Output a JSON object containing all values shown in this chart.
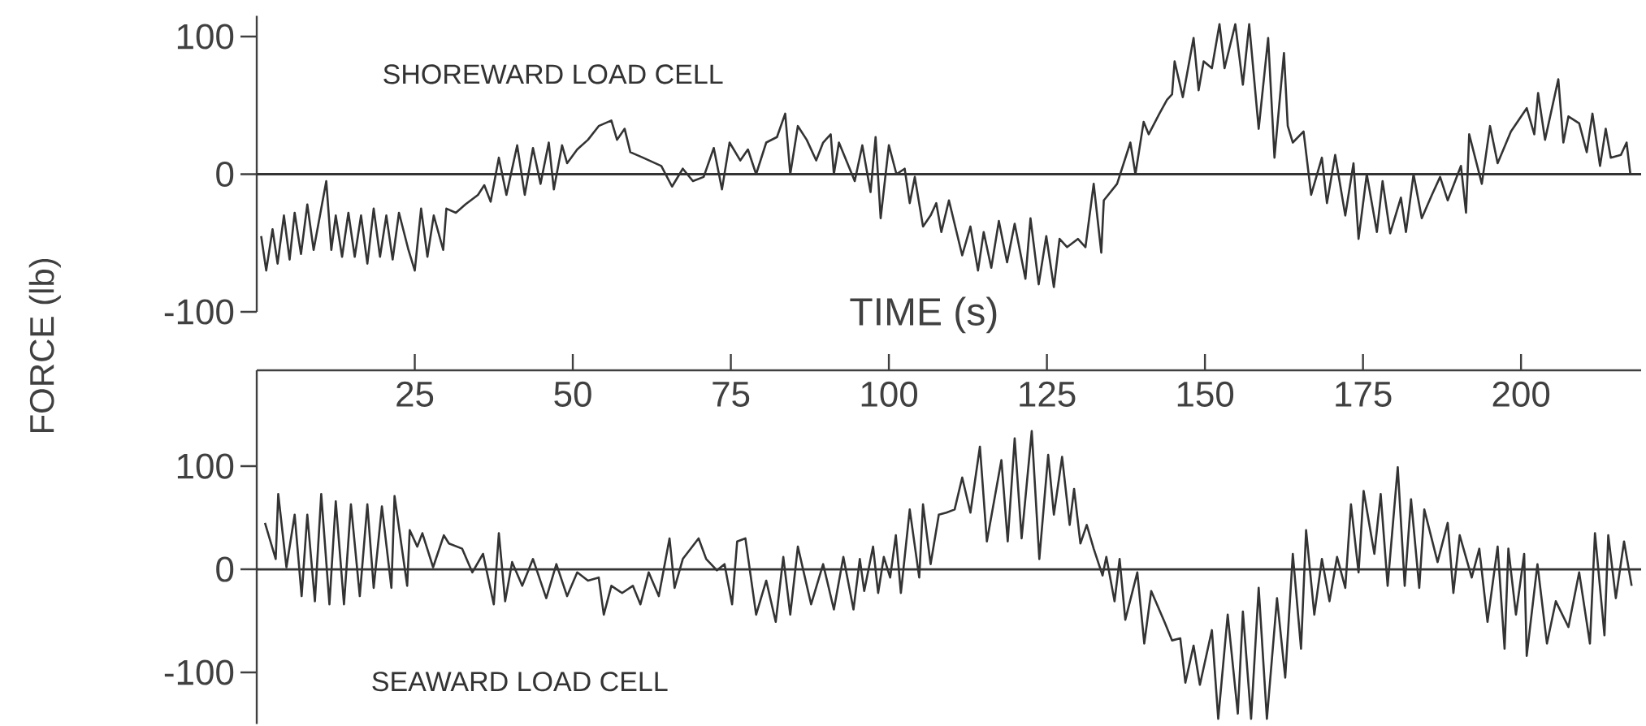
{
  "chart_data": [
    {
      "type": "line",
      "ylabel": "FORCE (lb)",
      "xlim": [
        0,
        219
      ],
      "ylim": [
        -100,
        115
      ],
      "yticks": [
        -100,
        0,
        100
      ],
      "tick_labels": "y",
      "marker": "none",
      "line_style": "solid",
      "ref_lines": [
        {
          "axis": "y",
          "value": 0,
          "color": "#333333"
        }
      ],
      "series": [
        {
          "name": "SHOREWARD LOAD CELL",
          "color": "#333333",
          "x": [
            0.7,
            1.5,
            2.5,
            3.3,
            4.3,
            5.2,
            6,
            7,
            8,
            9,
            11,
            11.8,
            12.5,
            13.5,
            14.5,
            15.5,
            16.5,
            17.5,
            18.5,
            19.5,
            20.5,
            21.5,
            22.5,
            24,
            25,
            26,
            27,
            28,
            29.5,
            30,
            31.5,
            33,
            35,
            36,
            37,
            38.3,
            39.5,
            41.2,
            42.4,
            43.7,
            44.9,
            46.2,
            47,
            48.3,
            49.1,
            50.7,
            52.4,
            54.1,
            56.1,
            57,
            58.2,
            59.1,
            61.1,
            64,
            65.7,
            67.4,
            69,
            70.7,
            72.3,
            73.6,
            74.8,
            76.5,
            77.7,
            79,
            80.6,
            82.3,
            83.6,
            84.4,
            85.6,
            87,
            88.5,
            89.6,
            90.8,
            91.3,
            92.1,
            94.6,
            95.8,
            97.1,
            97.9,
            98.7,
            100,
            101.2,
            102.5,
            103.3,
            104.1,
            105.4,
            106.6,
            107.5,
            108.3,
            109.5,
            111.6,
            112.9,
            114.1,
            115,
            116.2,
            117.4,
            118.7,
            119.9,
            121.6,
            122.4,
            123.7,
            124.9,
            126.1,
            127,
            128.2,
            129.9,
            131.1,
            132.4,
            133.6,
            134,
            136.1,
            138.2,
            139,
            140.3,
            141.1,
            142.8,
            144,
            144.8,
            145.2,
            146.5,
            148.2,
            149,
            149.8,
            151.1,
            152.3,
            153.1,
            154.8,
            156,
            157,
            158.5,
            160,
            161,
            162.5,
            163.1,
            163.9,
            165.6,
            166.8,
            168.5,
            169.3,
            170.6,
            172.2,
            173.5,
            174.3,
            175.6,
            177.2,
            178.1,
            179.3,
            181,
            181.8,
            183,
            184.3,
            185.9,
            187.2,
            188.4,
            190.5,
            191.3,
            191.8,
            193.8,
            195.1,
            196.3,
            198.4,
            200.9,
            202.1,
            202.7,
            203.8,
            205.9,
            206.7,
            207.5,
            209.2,
            210.4,
            211.3,
            212.5,
            213.4,
            214.2,
            215.8,
            216.7,
            217.3
          ],
          "values": [
            -45,
            -70,
            -40,
            -65,
            -30,
            -62,
            -28,
            -58,
            -22,
            -55,
            -5,
            -55,
            -30,
            -60,
            -28,
            -60,
            -30,
            -65,
            -25,
            -60,
            -30,
            -62,
            -28,
            -55,
            -70,
            -25,
            -60,
            -30,
            -55,
            -25,
            -28,
            -22,
            -15,
            -8,
            -20,
            12,
            -15,
            21,
            -15,
            19,
            -7,
            23,
            -11,
            21,
            8,
            18,
            25,
            35,
            39,
            25,
            33,
            16,
            12,
            6,
            -9,
            4,
            -5,
            -2,
            19,
            -11,
            23,
            10,
            18,
            0,
            23,
            27,
            44,
            0,
            35,
            25,
            10,
            23,
            29,
            0,
            23,
            -5,
            21,
            -13,
            27,
            -32,
            21,
            0,
            4,
            -21,
            -2,
            -38,
            -30,
            -21,
            -42,
            -19,
            -59,
            -38,
            -70,
            -42,
            -68,
            -34,
            -64,
            -36,
            -76,
            -32,
            -80,
            -45,
            -82,
            -47,
            -53,
            -47,
            -53,
            -7,
            -57,
            -19,
            -7,
            23,
            0,
            38,
            29,
            44,
            54,
            58,
            82,
            56,
            99,
            61,
            82,
            77,
            109,
            77,
            109,
            65,
            109,
            33,
            99,
            12,
            88,
            35,
            23,
            31,
            -15,
            12,
            -21,
            14,
            -30,
            8,
            -47,
            0,
            -42,
            -5,
            -43,
            -17,
            -42,
            0,
            -32,
            -15,
            -2,
            -19,
            6,
            -28,
            29,
            -7,
            35,
            8,
            31,
            48,
            29,
            59,
            25,
            69,
            23,
            42,
            37,
            16,
            44,
            6,
            33,
            12,
            14,
            23,
            0
          ]
        }
      ]
    },
    {
      "type": "line",
      "xlabel": "TIME (s)",
      "xlim": [
        0,
        219
      ],
      "xticks": [
        25,
        50,
        75,
        100,
        125,
        150,
        175,
        200
      ],
      "ylim": [
        -150,
        193
      ],
      "yticks": [
        -100,
        0,
        100
      ],
      "marker": "none",
      "line_style": "solid",
      "ref_lines": [
        {
          "axis": "y",
          "value": 0,
          "color": "#333333"
        }
      ],
      "series": [
        {
          "name": "SEAWARD LOAD CELL",
          "color": "#333333",
          "x": [
            1.3,
            3,
            3.4,
            4.7,
            6,
            7.1,
            8,
            9.2,
            10.2,
            11.5,
            12.5,
            13.8,
            14.9,
            16.3,
            17.5,
            18.5,
            19.8,
            21.3,
            21.8,
            23.8,
            24.2,
            25.4,
            26.2,
            27.9,
            29.6,
            30.4,
            32.5,
            34.1,
            35.8,
            37.5,
            38.3,
            39.3,
            40.4,
            42,
            43.7,
            45.8,
            47.4,
            49.1,
            50.7,
            52.4,
            54.1,
            54.9,
            56.1,
            57.8,
            59.5,
            60.7,
            62,
            63.6,
            65.3,
            66.1,
            67.4,
            69.9,
            71.1,
            72.8,
            74,
            75.2,
            76,
            77.3,
            79,
            80.6,
            82.1,
            83.3,
            84.4,
            85.6,
            87.7,
            89.6,
            91.3,
            92.8,
            94.4,
            95.4,
            96.1,
            97.5,
            98.3,
            99.2,
            100.2,
            101.1,
            101.9,
            103.3,
            104.8,
            105.4,
            106.6,
            107.9,
            109.1,
            110.4,
            111.6,
            112.9,
            114.4,
            115.5,
            117.8,
            118.8,
            119.9,
            121,
            122.6,
            123.8,
            125.2,
            126.1,
            127.4,
            128.6,
            129.3,
            130.3,
            131.3,
            132.4,
            133.8,
            134.4,
            135.7,
            136.5,
            137.4,
            139.3,
            140.4,
            141.5,
            143.6,
            144.8,
            146.1,
            146.9,
            148.2,
            149.2,
            151.1,
            152.1,
            153.6,
            155.2,
            156,
            157.3,
            158.5,
            159.8,
            161.4,
            162.7,
            163.9,
            165.2,
            166,
            167.3,
            168.5,
            169.7,
            170.9,
            172.2,
            173.1,
            174.3,
            175.1,
            176.8,
            177.8,
            178.9,
            180.5,
            181.6,
            182.6,
            183.9,
            184.7,
            186.8,
            188.4,
            189.3,
            190.3,
            192.2,
            193.4,
            194.7,
            196.3,
            197.4,
            198,
            199.2,
            200.5,
            200.9,
            202.6,
            204.1,
            205.5,
            207.5,
            209.2,
            210.9,
            211.7,
            213.2,
            213.8,
            215,
            216.3,
            217.5
          ],
          "values": [
            45,
            10,
            73,
            2,
            53,
            -26,
            53,
            -31,
            73,
            -34,
            66,
            -34,
            63,
            -26,
            63,
            -18,
            61,
            -18,
            71,
            -16,
            38,
            22,
            35,
            2,
            33,
            25,
            20,
            -3,
            15,
            -34,
            35,
            -31,
            7,
            -16,
            10,
            -28,
            5,
            -26,
            -3,
            -11,
            -8,
            -44,
            -16,
            -23,
            -16,
            -34,
            -3,
            -26,
            30,
            -18,
            10,
            30,
            10,
            -1,
            5,
            -34,
            27,
            30,
            -44,
            -11,
            -51,
            12,
            -44,
            22,
            -34,
            5,
            -39,
            12,
            -39,
            10,
            -21,
            22,
            -23,
            12,
            -8,
            33,
            -23,
            58,
            -8,
            63,
            5,
            53,
            55,
            58,
            89,
            55,
            119,
            27,
            106,
            27,
            127,
            30,
            134,
            10,
            111,
            53,
            109,
            43,
            78,
            25,
            43,
            20,
            -6,
            12,
            -31,
            10,
            -49,
            -3,
            -72,
            -21,
            -51,
            -69,
            -67,
            -110,
            -74,
            -112,
            -59,
            -145,
            -44,
            -140,
            -41,
            -145,
            -18,
            -145,
            -28,
            -105,
            15,
            -77,
            38,
            -44,
            10,
            -31,
            12,
            -18,
            63,
            -3,
            76,
            15,
            73,
            -16,
            99,
            -16,
            68,
            -18,
            58,
            7,
            45,
            -23,
            33,
            -8,
            20,
            -51,
            22,
            -77,
            20,
            -44,
            15,
            -84,
            5,
            -72,
            -31,
            -56,
            -3,
            -72,
            35,
            -64,
            33,
            -28,
            27,
            -16
          ]
        }
      ]
    }
  ]
}
